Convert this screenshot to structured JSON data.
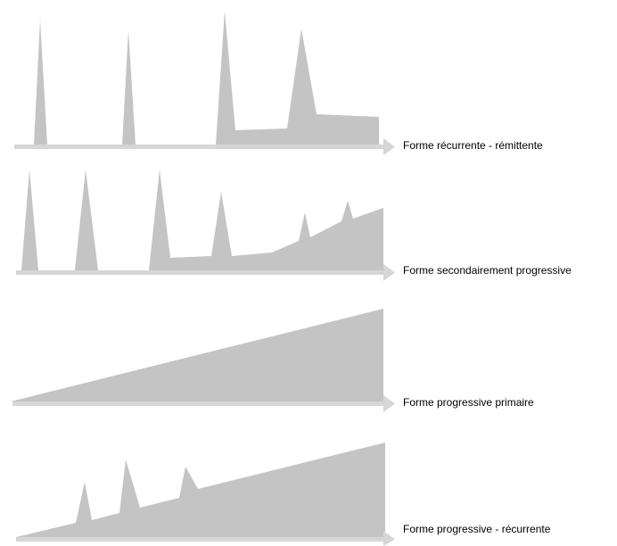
{
  "colors": {
    "shape": "#c4c4c4",
    "axis": "#d6d6d6",
    "text": "#000000",
    "background": "#ffffff"
  },
  "panels": [
    {
      "id": "recurrente-remittente",
      "label": "Forme récurrente - rémittente"
    },
    {
      "id": "secondairement-progressive",
      "label": "Forme secondairement progressive"
    },
    {
      "id": "progressive-primaire",
      "label": "Forme progressive primaire"
    },
    {
      "id": "progressive-recurrente",
      "label": "Forme progressive - récurrente"
    }
  ]
}
